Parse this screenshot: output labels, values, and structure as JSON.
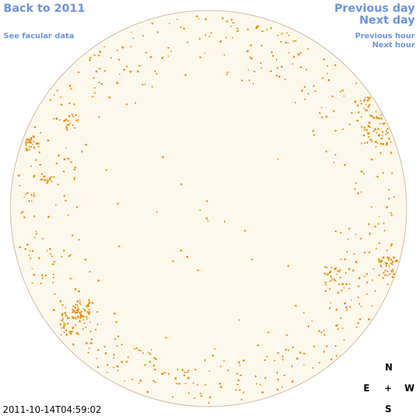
{
  "nav": {
    "back_year": "Back to 2011",
    "facular": "See facular data",
    "previous_day": "Previous day",
    "next_day": "Next day",
    "previous_hour": "Previous hour",
    "next_hour": "Next hour"
  },
  "compass": {
    "north": "N",
    "east": "E",
    "center": "+",
    "west": "W",
    "south": "S"
  },
  "timestamp": "2011-10-14T04:59:02",
  "colors": {
    "link": "#6b95e0",
    "disk_fill": "#fdf8ec",
    "disk_outline": "#c9b69a",
    "facula": "#ee8a00"
  }
}
